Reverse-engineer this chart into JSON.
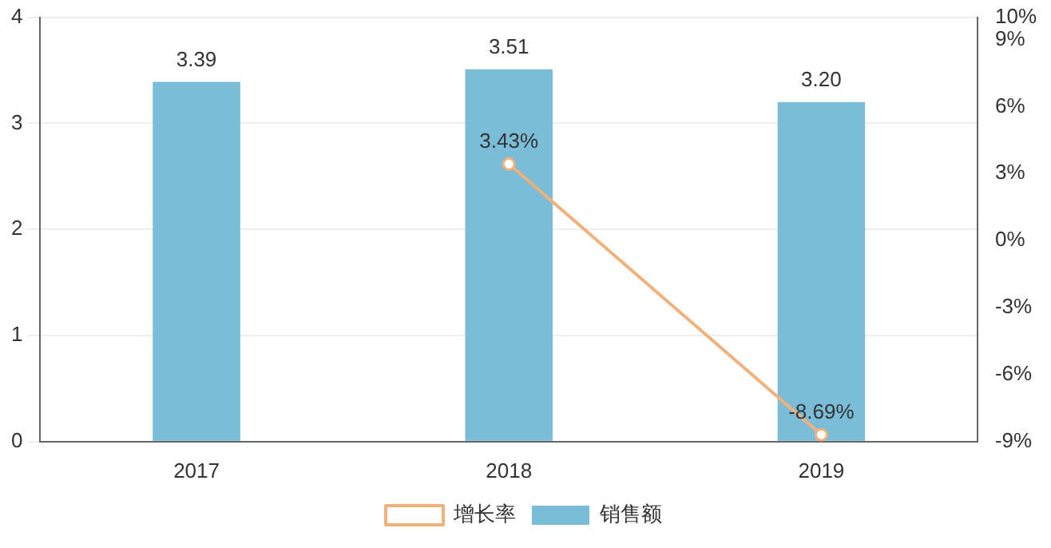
{
  "chart_data": {
    "type": "bar",
    "categories": [
      "2017",
      "2018",
      "2019"
    ],
    "series": [
      {
        "name": "销售额",
        "color": "#7bbcd9",
        "values": [
          3.39,
          3.51,
          3.2
        ],
        "value_labels": [
          "3.39",
          "3.51",
          "3.20"
        ]
      },
      {
        "name": "增长率",
        "type": "line",
        "axis": "y2",
        "color": "#f0b27a",
        "values": [
          null,
          3.43,
          -8.69
        ],
        "value_labels": [
          null,
          "3.43%",
          "-8.69%"
        ],
        "marker": "circle"
      }
    ],
    "ylim": [
      0,
      4
    ],
    "yticks": [
      0,
      1,
      2,
      3,
      4
    ],
    "y2lim": [
      -9,
      10
    ],
    "y2ticks": [
      {
        "value": -9,
        "label": "-9%"
      },
      {
        "value": -6,
        "label": "-6%"
      },
      {
        "value": -3,
        "label": "-3%"
      },
      {
        "value": 0,
        "label": "0%"
      },
      {
        "value": 3,
        "label": "3%"
      },
      {
        "value": 6,
        "label": "6%"
      },
      {
        "value": 9,
        "label": "9%"
      },
      {
        "value": 10,
        "label": "10%"
      }
    ],
    "grid": "y",
    "legend": "bottom"
  }
}
